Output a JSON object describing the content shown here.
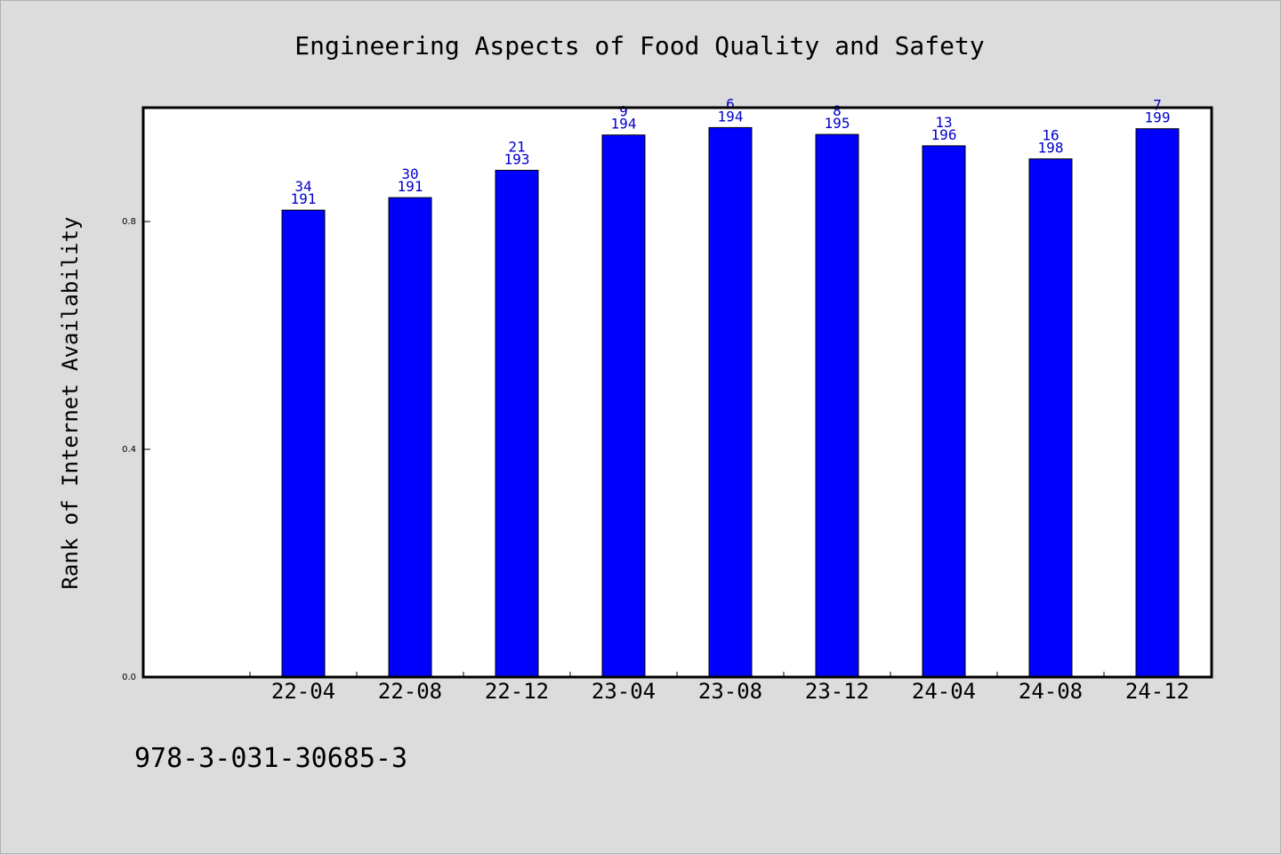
{
  "chart_data": {
    "type": "bar",
    "title": "Engineering Aspects of Food Quality and Safety",
    "xlabel": "",
    "ylabel": "Rank of Internet Availability",
    "categories": [
      "22-04",
      "22-08",
      "22-12",
      "23-04",
      "23-08",
      "23-12",
      "24-04",
      "24-08",
      "24-12"
    ],
    "values": [
      0.82,
      0.842,
      0.89,
      0.952,
      0.965,
      0.953,
      0.933,
      0.91,
      0.963
    ],
    "rank": [
      "34",
      "30",
      "21",
      "9",
      "6",
      "8",
      "13",
      "16",
      "7"
    ],
    "total": [
      "191",
      "191",
      "193",
      "194",
      "194",
      "195",
      "196",
      "198",
      "199"
    ],
    "yticks": [
      0.0,
      0.4,
      0.8
    ],
    "ytick_labels": [
      "0.0",
      "0.4",
      "0.8"
    ],
    "ylim": [
      0.0,
      1.0
    ],
    "grid": false,
    "bar_color": "#0000ff",
    "label_color": "#0000cc"
  },
  "footer": {
    "isbn": "978-3-031-30685-3"
  }
}
